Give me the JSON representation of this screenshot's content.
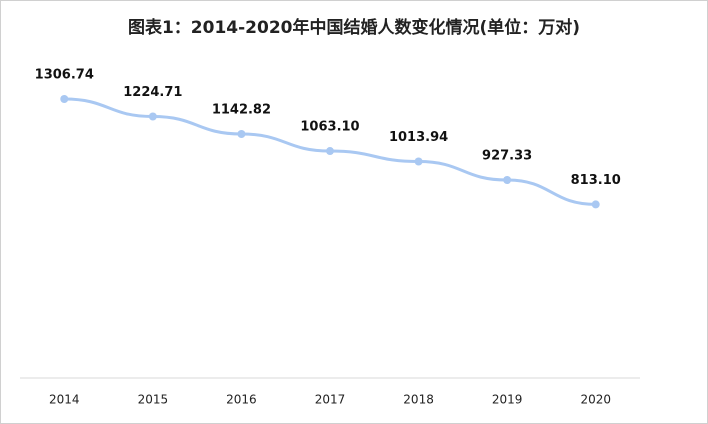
{
  "chart_data": {
    "type": "line",
    "title": "图表1：2014-2020年中国结婚人数变化情况(单位：万对)",
    "categories": [
      "2014",
      "2015",
      "2016",
      "2017",
      "2018",
      "2019",
      "2020"
    ],
    "values": [
      1306.74,
      1224.71,
      1142.82,
      1063.1,
      1013.94,
      927.33,
      813.1
    ],
    "value_labels": [
      "1306.74",
      "1224.71",
      "1142.82",
      "1063.10",
      "1013.94",
      "927.33",
      "813.10"
    ],
    "color": "#a9c8f2"
  }
}
